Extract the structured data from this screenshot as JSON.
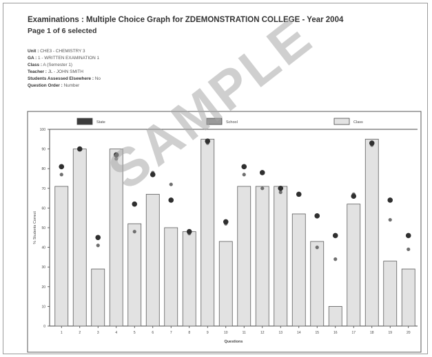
{
  "header": {
    "title": "Examinations : Multiple Choice Graph for ZDEMONSTRATION COLLEGE - Year 2004",
    "subtitle": "Page 1 of 6 selected"
  },
  "meta": [
    {
      "label": "Unit :",
      "value": "CHE3 - CHEMISTRY 3"
    },
    {
      "label": "GA :",
      "value": "1 - WRITTEN EXAMINATION 1"
    },
    {
      "label": "Class :",
      "value": "A (Semester 1)"
    },
    {
      "label": "Teacher :",
      "value": "JL - JOHN SMITH"
    },
    {
      "label": "Students Assessed Elsewhere :",
      "value": "No"
    },
    {
      "label": "Question Order :",
      "value": "Number"
    }
  ],
  "watermark": "SAMPLE",
  "chart_data": {
    "type": "bar",
    "title": "",
    "xlabel": "Questions",
    "ylabel": "% Students Correct",
    "ylim": [
      0,
      100
    ],
    "yticks": [
      0,
      10,
      20,
      30,
      40,
      50,
      60,
      70,
      80,
      90,
      100
    ],
    "categories": [
      "1",
      "2",
      "3",
      "4",
      "5",
      "6",
      "7",
      "8",
      "9",
      "10",
      "11",
      "12",
      "13",
      "14",
      "15",
      "16",
      "17",
      "18",
      "19",
      "20"
    ],
    "legend_position": "top",
    "series": [
      {
        "name": "State",
        "kind": "marker-large",
        "color": "#3a3a3a",
        "values": [
          81,
          90,
          45,
          87,
          62,
          77,
          64,
          48,
          94,
          53,
          81,
          78,
          70,
          67,
          56,
          46,
          66,
          93,
          64,
          46
        ]
      },
      {
        "name": "School",
        "kind": "marker-small",
        "color": "#707070",
        "values": [
          77,
          90,
          41,
          85,
          48,
          78,
          72,
          47,
          93,
          52,
          77,
          70,
          68,
          67,
          40,
          34,
          67,
          92,
          54,
          39
        ]
      },
      {
        "name": "Class",
        "kind": "bar",
        "color": "#d9d9d9",
        "values": [
          71,
          90,
          29,
          90,
          52,
          67,
          50,
          48,
          95,
          43,
          71,
          71,
          71,
          57,
          43,
          10,
          62,
          95,
          33,
          29
        ]
      }
    ]
  }
}
